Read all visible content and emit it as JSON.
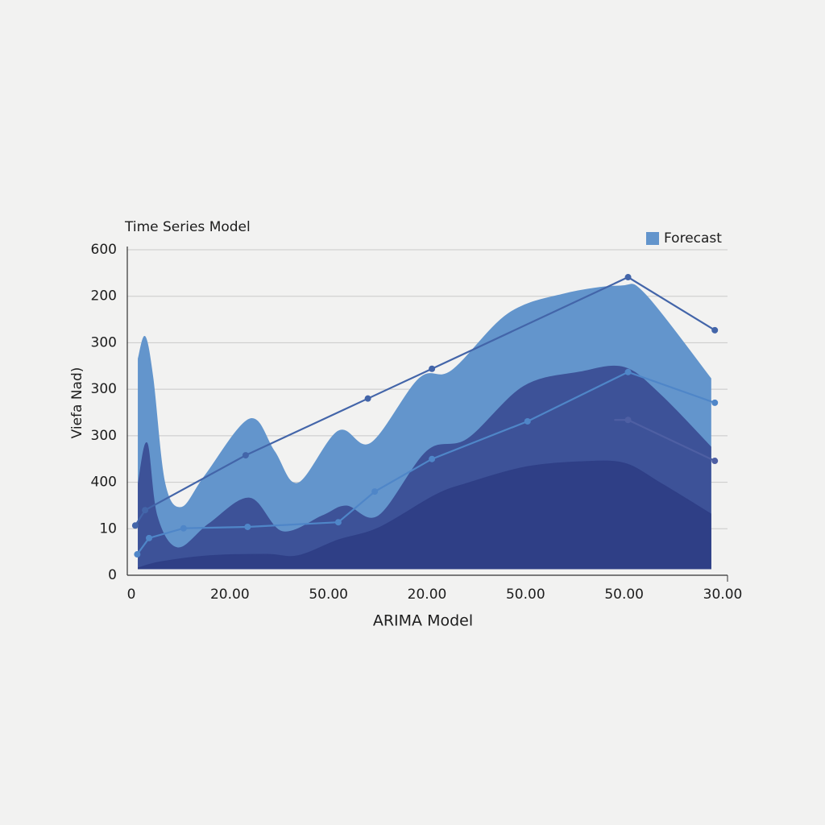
{
  "chart_data": {
    "type": "area",
    "title": "Time Series Model",
    "x_label": "ARIMA Model",
    "y_label": "Viefa Nad)",
    "xlim": [
      0,
      6
    ],
    "xticks": [
      0,
      {
        "value": 1,
        "label": "20.00"
      },
      {
        "value": 2,
        "label": "50.00"
      },
      {
        "value": 3,
        "label": "20.00"
      },
      {
        "value": 4,
        "label": "50.00"
      },
      {
        "value": 5,
        "label": "50.00"
      },
      {
        "value": 6,
        "label": "30.00"
      }
    ],
    "ylim": [
      0,
      7
    ],
    "yticks": [
      0,
      {
        "value": 1,
        "label": "10"
      },
      {
        "value": 2,
        "label": "400"
      },
      {
        "value": 3,
        "label": "300"
      },
      {
        "value": 4,
        "label": "300"
      },
      {
        "value": 5,
        "label": "300"
      },
      {
        "value": 6,
        "label": "200"
      },
      {
        "value": 7,
        "label": "600"
      }
    ],
    "grid": true,
    "legend": "top-right",
    "series": [
      {
        "name": "Forecast",
        "type": "area",
        "color": "#6395cc",
        "x": [
          0.07,
          0.14,
          0.22,
          0.34,
          0.51,
          0.75,
          1.2,
          1.45,
          1.69,
          2.1,
          2.43,
          2.92,
          3.25,
          3.82,
          4.39,
          4.96,
          5.21,
          5.88
        ],
        "values": [
          4.66,
          5.13,
          4.23,
          1.98,
          1.46,
          2.15,
          3.36,
          2.67,
          1.98,
          3.1,
          2.84,
          4.23,
          4.4,
          5.62,
          6.05,
          6.22,
          6.05,
          4.23
        ]
      },
      {
        "type": "area",
        "color": "#3d5298",
        "x": [
          0.07,
          0.16,
          0.26,
          0.47,
          0.79,
          1.2,
          1.53,
          1.94,
          2.18,
          2.51,
          3.0,
          3.41,
          3.98,
          4.55,
          5.0,
          5.37,
          5.88
        ],
        "values": [
          1.98,
          2.84,
          1.28,
          0.59,
          1.11,
          1.66,
          0.94,
          1.28,
          1.49,
          1.28,
          2.67,
          2.93,
          4.06,
          4.37,
          4.47,
          3.88,
          2.76
        ]
      },
      {
        "type": "area",
        "color": "#2f3f86",
        "x": [
          0.07,
          0.3,
          0.79,
          1.37,
          1.69,
          2.1,
          2.51,
          3.08,
          3.41,
          3.98,
          4.55,
          5.0,
          5.37,
          5.88
        ],
        "values": [
          0.16,
          0.29,
          0.42,
          0.45,
          0.42,
          0.76,
          1.02,
          1.72,
          1.98,
          2.32,
          2.44,
          2.41,
          1.98,
          1.32
        ]
      },
      {
        "type": "line",
        "color": "#4365a9",
        "x": [
          0.04,
          0.14,
          1.16,
          2.4,
          3.05,
          5.04,
          5.92
        ],
        "values": [
          1.07,
          1.4,
          2.58,
          3.8,
          4.44,
          6.41,
          5.27
        ]
      },
      {
        "type": "line",
        "color": "#4f86c8",
        "x": [
          0.06,
          0.18,
          0.53,
          1.18,
          2.1,
          2.47,
          3.05,
          4.02,
          5.04,
          5.92
        ],
        "values": [
          0.45,
          0.8,
          1.01,
          1.04,
          1.14,
          1.8,
          2.5,
          3.31,
          4.37,
          3.71
        ]
      },
      {
        "type": "line",
        "color": "#4e5fa3",
        "x": [
          4.9,
          5.04,
          5.92
        ],
        "values": [
          3.34,
          3.34,
          2.46
        ]
      }
    ]
  }
}
